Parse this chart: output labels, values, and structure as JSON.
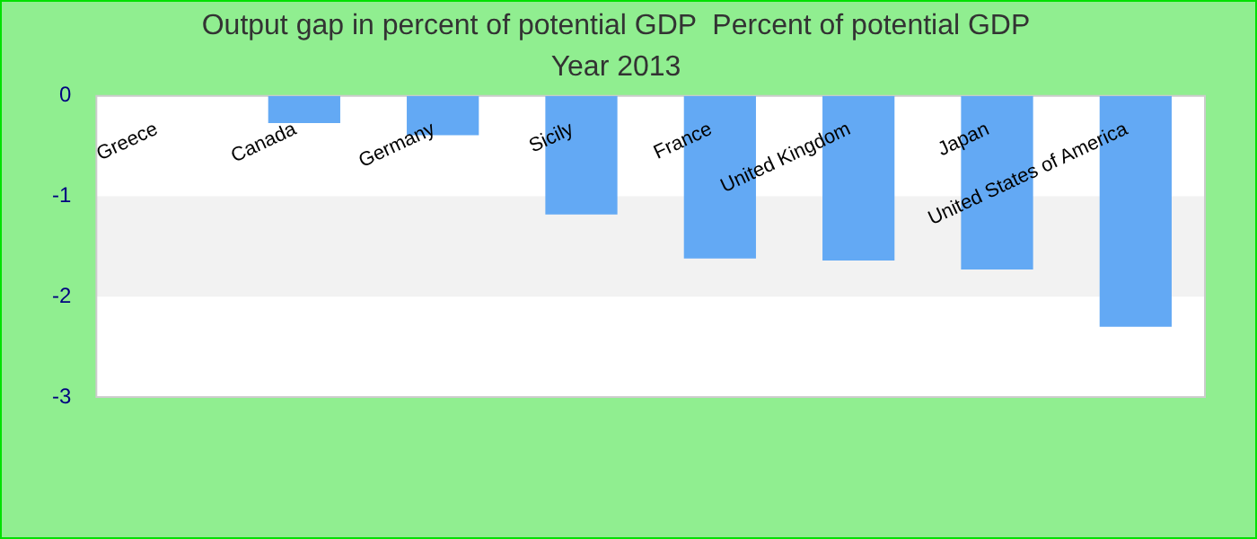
{
  "chart_data": {
    "type": "bar",
    "title": "Output gap in percent of potential GDP  Percent of potential GDP",
    "subtitle": "Year 2013",
    "categories": [
      "Greece",
      "Canada",
      "Germany",
      "Sicily",
      "France",
      "United Kingdom",
      "Japan",
      "United States of America"
    ],
    "values": [
      0,
      -0.27,
      -0.39,
      -1.18,
      -1.62,
      -1.64,
      -1.73,
      -2.3
    ],
    "color": "#63a9f4",
    "ylim": [
      -3,
      0
    ],
    "yticks": [
      -3,
      -2,
      -1,
      0
    ],
    "bands": [
      {
        "axis": "y",
        "from": -2,
        "to": -1,
        "color": "#f2f2f2"
      }
    ],
    "grid": false,
    "legend": false
  }
}
